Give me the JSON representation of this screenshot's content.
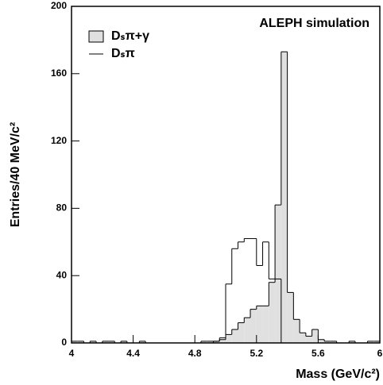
{
  "chart_data": {
    "type": "histogram",
    "title": "ALEPH simulation",
    "x_label": "Mass (GeV/c²)",
    "y_label": "Entries/40 MeV/c²",
    "bins": [
      4,
      4.04,
      4.08,
      4.12,
      4.16,
      4.2,
      4.24,
      4.28,
      4.32,
      4.36,
      4.4,
      4.44,
      4.48,
      4.52,
      4.56,
      4.6,
      4.64,
      4.68,
      4.72,
      4.76,
      4.8,
      4.84,
      4.88,
      4.92,
      4.96,
      5,
      5.04,
      5.08,
      5.12,
      5.16,
      5.2,
      5.24,
      5.28,
      5.32,
      5.36,
      5.4,
      5.44,
      5.48,
      5.52,
      5.56,
      5.6,
      5.64,
      5.68,
      5.72,
      5.76,
      5.8,
      5.84,
      5.88,
      5.92,
      5.96,
      6
    ],
    "series": [
      {
        "name": "Dₛπ+γ",
        "color": "#e0e0e0",
        "filled": true,
        "values": [
          1,
          1,
          0,
          1,
          0,
          1,
          1,
          0,
          1,
          0,
          0,
          1,
          0,
          0,
          0,
          0,
          0,
          0,
          0,
          0,
          0,
          1,
          1,
          1,
          2,
          5,
          8,
          12,
          15,
          20,
          22,
          22,
          36,
          82,
          173,
          30,
          14,
          6,
          4,
          8,
          2,
          1,
          1,
          0,
          0,
          1,
          0,
          0,
          1,
          1
        ]
      },
      {
        "name": "Dₛπ",
        "color": "#000000",
        "filled": false,
        "values": [
          0,
          0,
          0,
          0,
          0,
          0,
          0,
          0,
          0,
          0,
          0,
          0,
          0,
          0,
          0,
          0,
          0,
          0,
          0,
          0,
          0,
          0,
          0,
          1,
          3,
          35,
          56,
          60,
          62,
          62,
          46,
          60,
          38,
          38,
          0,
          0,
          0,
          0,
          0,
          0,
          0,
          0,
          0,
          0,
          0,
          0,
          0,
          0,
          0,
          0
        ]
      }
    ],
    "xlim": [
      4,
      6
    ],
    "ylim": [
      0,
      200
    ],
    "xticks": [
      4,
      4.4,
      4.8,
      5.2,
      5.6,
      6
    ],
    "yticks": [
      0,
      40,
      80,
      120,
      160,
      200
    ]
  }
}
